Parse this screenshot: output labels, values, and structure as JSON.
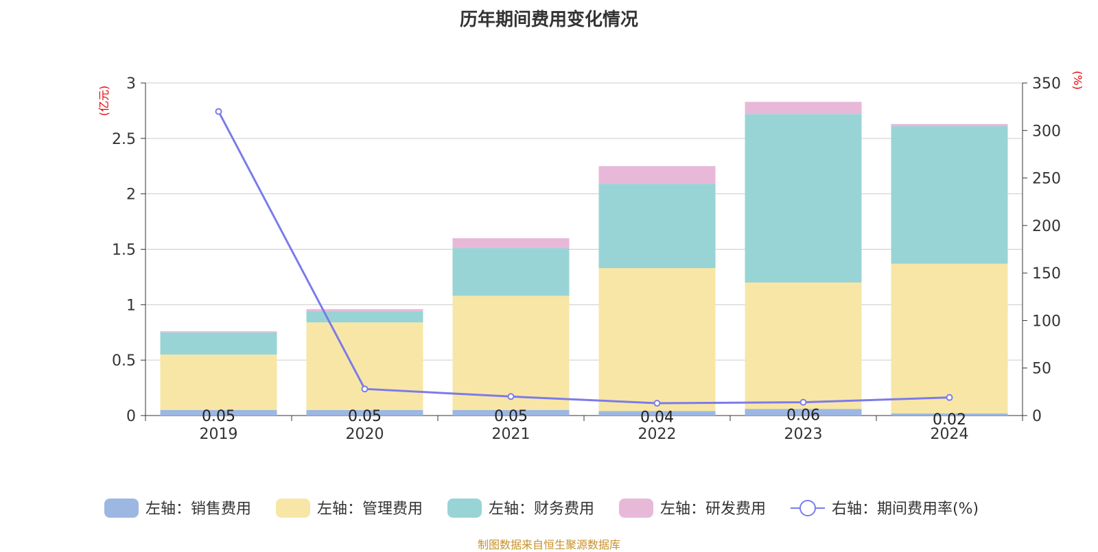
{
  "chart_data": {
    "type": "bar",
    "title": "历年期间费用变化情况",
    "categories": [
      "2019",
      "2020",
      "2021",
      "2022",
      "2023",
      "2024"
    ],
    "left_axis": {
      "unit": "(亿元)",
      "ylim": [
        0,
        3
      ],
      "ticks": [
        "0",
        "0.5",
        "1",
        "1.5",
        "2",
        "2.5",
        "3"
      ]
    },
    "right_axis": {
      "unit": "(%)",
      "ylim": [
        0,
        350
      ],
      "ticks": [
        "0",
        "50",
        "100",
        "150",
        "200",
        "250",
        "300",
        "350"
      ]
    },
    "series": [
      {
        "name": "左轴：销售费用",
        "type": "bar",
        "axis": "left",
        "color": "#9db7e3",
        "values": [
          0.05,
          0.05,
          0.05,
          0.04,
          0.06,
          0.02
        ],
        "labels": [
          "0.05",
          "0.05",
          "0.05",
          "0.04",
          "0.06",
          "0.02"
        ]
      },
      {
        "name": "左轴：管理费用",
        "type": "bar",
        "axis": "left",
        "color": "#f8e6a6",
        "values": [
          0.5,
          0.79,
          1.03,
          1.29,
          1.14,
          1.35
        ]
      },
      {
        "name": "左轴：财务费用",
        "type": "bar",
        "axis": "left",
        "color": "#98d4d5",
        "values": [
          0.2,
          0.1,
          0.43,
          0.76,
          1.52,
          1.24
        ]
      },
      {
        "name": "左轴：研发费用",
        "type": "bar",
        "axis": "left",
        "color": "#e8b8d9",
        "values": [
          0.01,
          0.02,
          0.09,
          0.16,
          0.11,
          0.02
        ]
      },
      {
        "name": "右轴：期间费用率(%)",
        "type": "line",
        "axis": "right",
        "color": "#7b7bea",
        "values": [
          320,
          28,
          20,
          13,
          14,
          19
        ]
      }
    ],
    "grid": true,
    "legend_position": "bottom"
  },
  "footer": "制图数据来自恒生聚源数据库"
}
